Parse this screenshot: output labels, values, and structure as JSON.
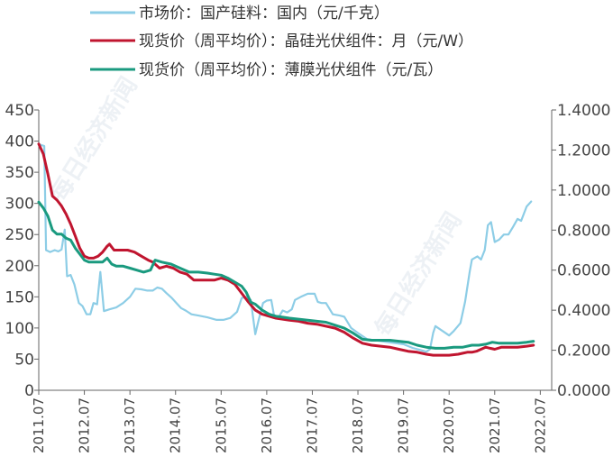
{
  "watermark": "每日经济新闻",
  "chart_data": {
    "type": "line",
    "legend_placement": "top-left",
    "grid": false,
    "y_left": {
      "min": 0,
      "max": 450,
      "ticks": [
        "0",
        "50",
        "100",
        "150",
        "200",
        "250",
        "300",
        "350",
        "400",
        "450"
      ]
    },
    "y_right": {
      "min": 0,
      "max": 1.4,
      "ticks": [
        "0.0000",
        "0.2000",
        "0.4000",
        "0.6000",
        "0.8000",
        "1.0000",
        "1.2000",
        "1.4000"
      ]
    },
    "x_range": [
      2011.5,
      2022.75
    ],
    "x_ticks": [
      {
        "label": "2011.07",
        "x": 2011.5
      },
      {
        "label": "2012.07",
        "x": 2012.5
      },
      {
        "label": "2013.07",
        "x": 2013.5
      },
      {
        "label": "2014.07",
        "x": 2014.5
      },
      {
        "label": "2015.07",
        "x": 2015.5
      },
      {
        "label": "2016.07",
        "x": 2016.5
      },
      {
        "label": "2017.07",
        "x": 2017.5
      },
      {
        "label": "2018.07",
        "x": 2018.5
      },
      {
        "label": "2019.07",
        "x": 2019.5
      },
      {
        "label": "2020.07",
        "x": 2020.5
      },
      {
        "label": "2021.07",
        "x": 2021.5
      },
      {
        "label": "2022.07",
        "x": 2022.5
      }
    ],
    "series": [
      {
        "name": "市场价：国产硅料：国内（元/千克）",
        "axis": "left",
        "color": "#8dcde6",
        "points": [
          [
            2011.5,
            395
          ],
          [
            2011.62,
            392
          ],
          [
            2011.66,
            225
          ],
          [
            2011.75,
            222
          ],
          [
            2011.85,
            225
          ],
          [
            2011.93,
            223
          ],
          [
            2012.0,
            226
          ],
          [
            2012.07,
            258
          ],
          [
            2012.12,
            183
          ],
          [
            2012.2,
            185
          ],
          [
            2012.28,
            170
          ],
          [
            2012.38,
            140
          ],
          [
            2012.46,
            135
          ],
          [
            2012.55,
            122
          ],
          [
            2012.63,
            122
          ],
          [
            2012.7,
            140
          ],
          [
            2012.78,
            138
          ],
          [
            2012.85,
            190
          ],
          [
            2012.93,
            127
          ],
          [
            2013.05,
            130
          ],
          [
            2013.2,
            133
          ],
          [
            2013.35,
            140
          ],
          [
            2013.5,
            150
          ],
          [
            2013.62,
            163
          ],
          [
            2013.75,
            162
          ],
          [
            2013.88,
            160
          ],
          [
            2014.0,
            160
          ],
          [
            2014.1,
            165
          ],
          [
            2014.2,
            163
          ],
          [
            2014.3,
            156
          ],
          [
            2014.42,
            148
          ],
          [
            2014.52,
            140
          ],
          [
            2014.62,
            132
          ],
          [
            2014.72,
            128
          ],
          [
            2014.85,
            122
          ],
          [
            2015.0,
            120
          ],
          [
            2015.2,
            117
          ],
          [
            2015.4,
            113
          ],
          [
            2015.55,
            113
          ],
          [
            2015.7,
            116
          ],
          [
            2015.85,
            126
          ],
          [
            2015.95,
            148
          ],
          [
            2016.05,
            150
          ],
          [
            2016.15,
            145
          ],
          [
            2016.25,
            90
          ],
          [
            2016.32,
            112
          ],
          [
            2016.42,
            140
          ],
          [
            2016.5,
            144
          ],
          [
            2016.6,
            145
          ],
          [
            2016.66,
            120
          ],
          [
            2016.75,
            116
          ],
          [
            2016.85,
            128
          ],
          [
            2016.95,
            125
          ],
          [
            2017.05,
            130
          ],
          [
            2017.12,
            145
          ],
          [
            2017.25,
            150
          ],
          [
            2017.4,
            155
          ],
          [
            2017.55,
            155
          ],
          [
            2017.62,
            142
          ],
          [
            2017.7,
            140
          ],
          [
            2017.8,
            140
          ],
          [
            2017.95,
            122
          ],
          [
            2018.1,
            120
          ],
          [
            2018.2,
            118
          ],
          [
            2018.35,
            100
          ],
          [
            2018.5,
            92
          ],
          [
            2018.7,
            82
          ],
          [
            2018.9,
            80
          ],
          [
            2019.1,
            78
          ],
          [
            2019.3,
            76
          ],
          [
            2019.5,
            74
          ],
          [
            2019.7,
            68
          ],
          [
            2019.85,
            65
          ],
          [
            2020.0,
            62
          ],
          [
            2020.08,
            66
          ],
          [
            2020.15,
            92
          ],
          [
            2020.2,
            103
          ],
          [
            2020.3,
            98
          ],
          [
            2020.4,
            93
          ],
          [
            2020.5,
            88
          ],
          [
            2020.6,
            95
          ],
          [
            2020.75,
            108
          ],
          [
            2020.85,
            142
          ],
          [
            2020.95,
            190
          ],
          [
            2021.0,
            210
          ],
          [
            2021.12,
            215
          ],
          [
            2021.2,
            210
          ],
          [
            2021.28,
            225
          ],
          [
            2021.35,
            265
          ],
          [
            2021.42,
            270
          ],
          [
            2021.5,
            238
          ],
          [
            2021.6,
            242
          ],
          [
            2021.7,
            250
          ],
          [
            2021.8,
            250
          ],
          [
            2021.9,
            262
          ],
          [
            2022.0,
            275
          ],
          [
            2022.08,
            272
          ],
          [
            2022.2,
            295
          ],
          [
            2022.3,
            303
          ]
        ]
      },
      {
        "name": "现货价（周平均价）：晶硅光伏组件：月（元/W）",
        "axis": "right",
        "color": "#c0152f",
        "points": [
          [
            2011.5,
            1.23
          ],
          [
            2011.6,
            1.18
          ],
          [
            2011.7,
            1.08
          ],
          [
            2011.8,
            0.97
          ],
          [
            2011.9,
            0.95
          ],
          [
            2012.0,
            0.92
          ],
          [
            2012.1,
            0.88
          ],
          [
            2012.2,
            0.83
          ],
          [
            2012.3,
            0.77
          ],
          [
            2012.4,
            0.71
          ],
          [
            2012.5,
            0.67
          ],
          [
            2012.6,
            0.66
          ],
          [
            2012.7,
            0.66
          ],
          [
            2012.8,
            0.67
          ],
          [
            2012.9,
            0.69
          ],
          [
            2013.0,
            0.72
          ],
          [
            2013.05,
            0.73
          ],
          [
            2013.15,
            0.7
          ],
          [
            2013.3,
            0.7
          ],
          [
            2013.45,
            0.7
          ],
          [
            2013.6,
            0.69
          ],
          [
            2013.75,
            0.67
          ],
          [
            2013.9,
            0.65
          ],
          [
            2014.0,
            0.64
          ],
          [
            2014.15,
            0.61
          ],
          [
            2014.3,
            0.62
          ],
          [
            2014.45,
            0.61
          ],
          [
            2014.6,
            0.59
          ],
          [
            2014.75,
            0.58
          ],
          [
            2014.9,
            0.55
          ],
          [
            2015.05,
            0.55
          ],
          [
            2015.2,
            0.55
          ],
          [
            2015.35,
            0.55
          ],
          [
            2015.5,
            0.56
          ],
          [
            2015.65,
            0.55
          ],
          [
            2015.8,
            0.53
          ],
          [
            2015.9,
            0.5
          ],
          [
            2016.0,
            0.47
          ],
          [
            2016.1,
            0.44
          ],
          [
            2016.25,
            0.4
          ],
          [
            2016.4,
            0.38
          ],
          [
            2016.55,
            0.37
          ],
          [
            2016.7,
            0.36
          ],
          [
            2016.85,
            0.355
          ],
          [
            2017.0,
            0.35
          ],
          [
            2017.2,
            0.345
          ],
          [
            2017.4,
            0.335
          ],
          [
            2017.6,
            0.33
          ],
          [
            2017.8,
            0.32
          ],
          [
            2018.0,
            0.31
          ],
          [
            2018.2,
            0.29
          ],
          [
            2018.4,
            0.26
          ],
          [
            2018.6,
            0.235
          ],
          [
            2018.8,
            0.225
          ],
          [
            2019.0,
            0.22
          ],
          [
            2019.2,
            0.215
          ],
          [
            2019.4,
            0.205
          ],
          [
            2019.6,
            0.195
          ],
          [
            2019.8,
            0.19
          ],
          [
            2020.0,
            0.18
          ],
          [
            2020.15,
            0.175
          ],
          [
            2020.3,
            0.175
          ],
          [
            2020.5,
            0.175
          ],
          [
            2020.7,
            0.18
          ],
          [
            2020.8,
            0.185
          ],
          [
            2020.9,
            0.19
          ],
          [
            2021.0,
            0.19
          ],
          [
            2021.1,
            0.195
          ],
          [
            2021.2,
            0.205
          ],
          [
            2021.3,
            0.215
          ],
          [
            2021.4,
            0.21
          ],
          [
            2021.5,
            0.205
          ],
          [
            2021.65,
            0.215
          ],
          [
            2021.8,
            0.215
          ],
          [
            2022.0,
            0.215
          ],
          [
            2022.2,
            0.22
          ],
          [
            2022.35,
            0.225
          ]
        ]
      },
      {
        "name": "现货价（周平均价）：薄膜光伏组件（元/瓦）",
        "axis": "right",
        "color": "#1a9a7f",
        "points": [
          [
            2011.5,
            0.94
          ],
          [
            2011.6,
            0.91
          ],
          [
            2011.7,
            0.87
          ],
          [
            2011.8,
            0.8
          ],
          [
            2011.9,
            0.78
          ],
          [
            2012.0,
            0.78
          ],
          [
            2012.1,
            0.76
          ],
          [
            2012.2,
            0.75
          ],
          [
            2012.3,
            0.71
          ],
          [
            2012.4,
            0.68
          ],
          [
            2012.5,
            0.65
          ],
          [
            2012.6,
            0.64
          ],
          [
            2012.7,
            0.64
          ],
          [
            2012.8,
            0.64
          ],
          [
            2012.9,
            0.64
          ],
          [
            2013.0,
            0.66
          ],
          [
            2013.1,
            0.63
          ],
          [
            2013.2,
            0.62
          ],
          [
            2013.35,
            0.62
          ],
          [
            2013.5,
            0.61
          ],
          [
            2013.65,
            0.6
          ],
          [
            2013.8,
            0.59
          ],
          [
            2013.95,
            0.6
          ],
          [
            2014.05,
            0.65
          ],
          [
            2014.2,
            0.64
          ],
          [
            2014.4,
            0.63
          ],
          [
            2014.6,
            0.61
          ],
          [
            2014.8,
            0.59
          ],
          [
            2015.0,
            0.59
          ],
          [
            2015.2,
            0.585
          ],
          [
            2015.35,
            0.58
          ],
          [
            2015.5,
            0.575
          ],
          [
            2015.65,
            0.56
          ],
          [
            2015.8,
            0.54
          ],
          [
            2015.95,
            0.52
          ],
          [
            2016.05,
            0.49
          ],
          [
            2016.15,
            0.44
          ],
          [
            2016.25,
            0.43
          ],
          [
            2016.4,
            0.4
          ],
          [
            2016.55,
            0.38
          ],
          [
            2016.7,
            0.37
          ],
          [
            2016.85,
            0.365
          ],
          [
            2017.0,
            0.36
          ],
          [
            2017.2,
            0.355
          ],
          [
            2017.4,
            0.35
          ],
          [
            2017.6,
            0.345
          ],
          [
            2017.8,
            0.34
          ],
          [
            2018.0,
            0.325
          ],
          [
            2018.2,
            0.31
          ],
          [
            2018.4,
            0.285
          ],
          [
            2018.6,
            0.255
          ],
          [
            2018.8,
            0.25
          ],
          [
            2019.0,
            0.25
          ],
          [
            2019.2,
            0.25
          ],
          [
            2019.4,
            0.245
          ],
          [
            2019.6,
            0.24
          ],
          [
            2019.8,
            0.225
          ],
          [
            2020.0,
            0.215
          ],
          [
            2020.2,
            0.21
          ],
          [
            2020.4,
            0.21
          ],
          [
            2020.6,
            0.215
          ],
          [
            2020.8,
            0.215
          ],
          [
            2021.0,
            0.225
          ],
          [
            2021.15,
            0.225
          ],
          [
            2021.3,
            0.23
          ],
          [
            2021.45,
            0.24
          ],
          [
            2021.6,
            0.235
          ],
          [
            2021.8,
            0.235
          ],
          [
            2022.0,
            0.235
          ],
          [
            2022.2,
            0.24
          ],
          [
            2022.35,
            0.245
          ]
        ]
      }
    ]
  }
}
